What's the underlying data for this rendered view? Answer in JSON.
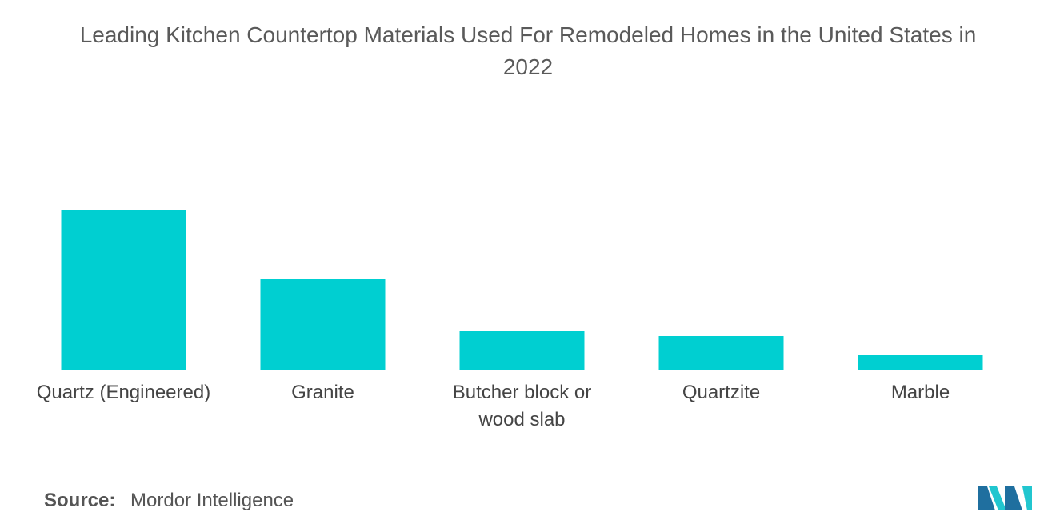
{
  "chart_data": {
    "type": "bar",
    "title": "Leading Kitchen Countertop Materials Used For Remodeled Homes in the United States in 2022",
    "title_lines": [
      "Leading Kitchen Countertop Materials Used For Remodeled Homes in the United States in",
      "2022"
    ],
    "categories": [
      "Quartz (Engineered)",
      "Granite",
      "Butcher block or wood slab",
      "Quartzite",
      "Marble"
    ],
    "category_lines": [
      [
        "Quartz (Engineered)"
      ],
      [
        "Granite"
      ],
      [
        "Butcher block or",
        "wood slab"
      ],
      [
        "Quartzite"
      ],
      [
        "Marble"
      ]
    ],
    "values": [
      40,
      22.6,
      9.6,
      8.4,
      3.6
    ],
    "xlabel": "",
    "ylabel": "",
    "ylim": [
      0,
      40
    ],
    "grid": false,
    "legend": "none",
    "bar_color": "#00CFD1"
  },
  "source": {
    "label": "Source:",
    "value": "Mordor Intelligence"
  },
  "logo": {
    "icon": "mordor-intelligence-logo",
    "color_dark": "#1f6f9f",
    "color_light": "#21c6cf"
  }
}
